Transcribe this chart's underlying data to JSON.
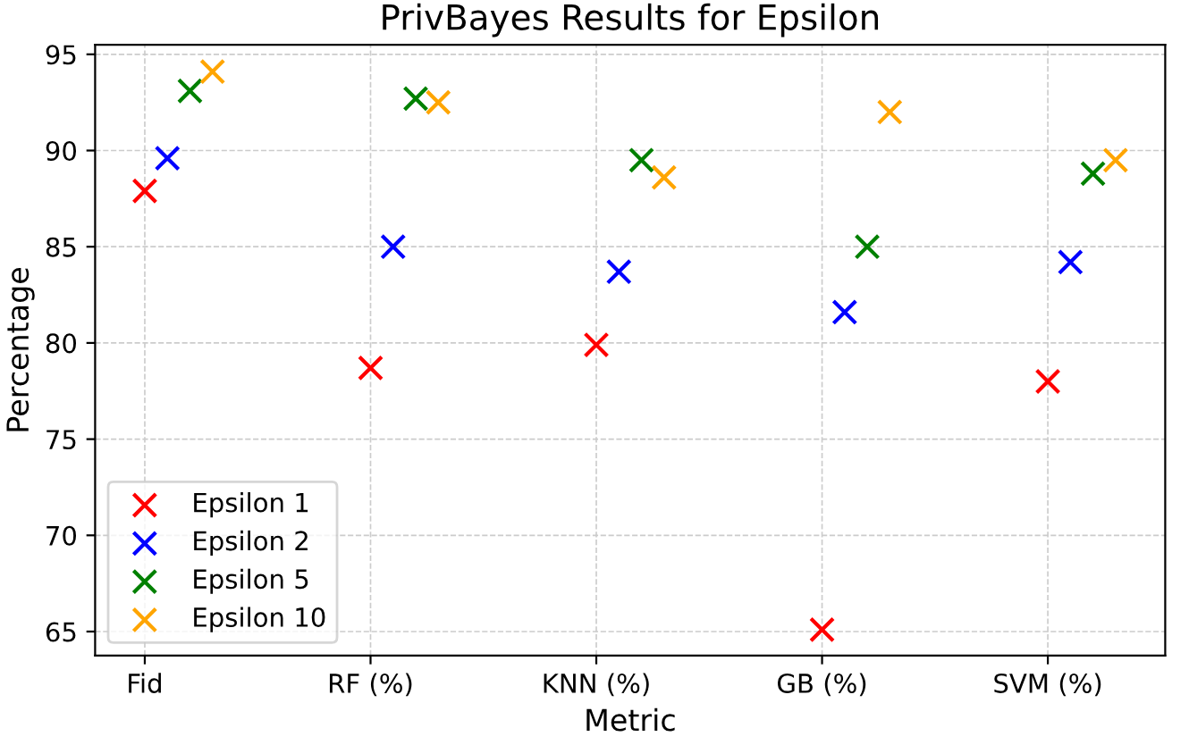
{
  "chart_data": {
    "type": "scatter",
    "title": "PrivBayes Results for Epsilon",
    "xlabel": "Metric",
    "ylabel": "Percentage",
    "categories": [
      "Fid",
      "RF (%)",
      "KNN (%)",
      "GB (%)",
      "SVM (%)"
    ],
    "series": [
      {
        "name": "Epsilon 1",
        "color": "#ff0000",
        "values": [
          87.9,
          78.7,
          79.9,
          65.1,
          78.0
        ]
      },
      {
        "name": "Epsilon 2",
        "color": "#0000ff",
        "values": [
          89.6,
          85.0,
          83.7,
          81.6,
          84.2
        ]
      },
      {
        "name": "Epsilon 5",
        "color": "#008000",
        "values": [
          93.1,
          92.7,
          89.5,
          85.0,
          88.8
        ]
      },
      {
        "name": "Epsilon 10",
        "color": "#ffa500",
        "values": [
          94.1,
          92.5,
          88.6,
          92.0,
          89.5
        ]
      }
    ],
    "ylim": [
      63.75,
      95.5
    ],
    "yticks": [
      65,
      70,
      75,
      80,
      85,
      90,
      95
    ],
    "grid": true,
    "legend": "bottom left",
    "marker": "cross"
  }
}
